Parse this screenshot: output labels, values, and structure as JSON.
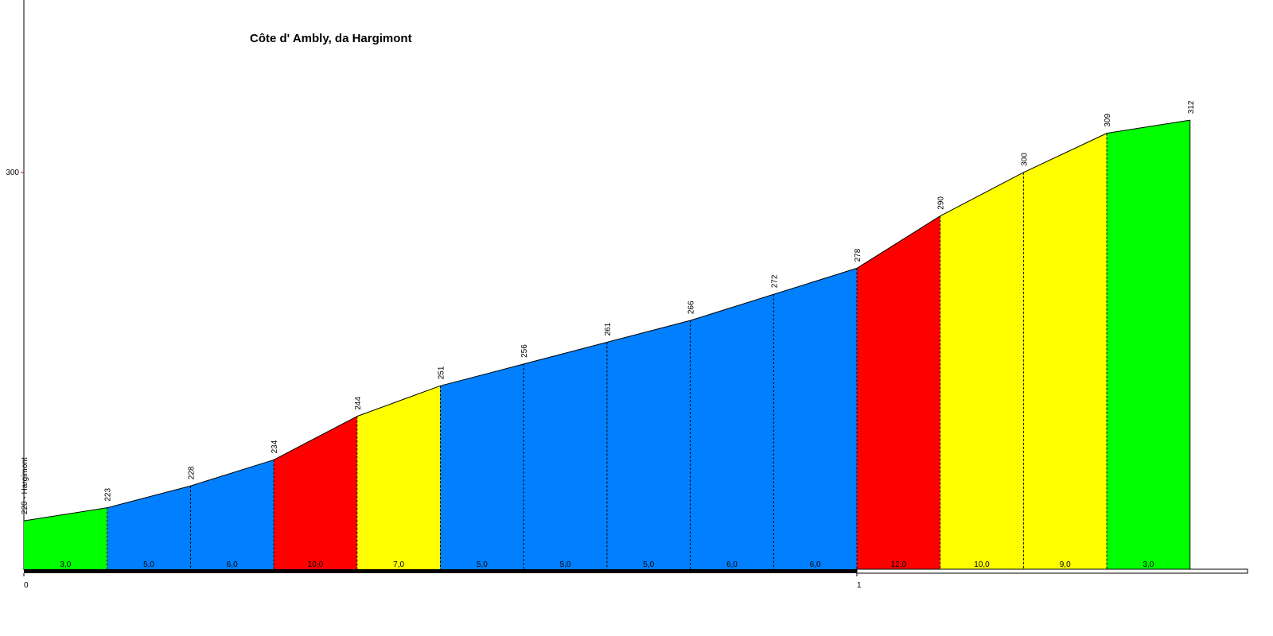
{
  "chart_data": {
    "type": "profile",
    "title": "Côte d' Ambly, da Hargimont",
    "x": [
      0,
      0.1,
      0.2,
      0.3,
      0.4,
      0.5,
      0.6,
      0.7,
      0.8,
      0.9,
      1.0,
      1.1,
      1.2,
      1.3,
      1.4
    ],
    "values": [
      220,
      223,
      228,
      234,
      244,
      251,
      256,
      261,
      266,
      272,
      278,
      290,
      300,
      309,
      312
    ],
    "value_labels": [
      "220 - Hargimont",
      "223",
      "228",
      "234",
      "244",
      "251",
      "256",
      "261",
      "266",
      "272",
      "278",
      "290",
      "300",
      "309",
      "312"
    ],
    "segments": {
      "values": [
        3,
        5,
        6,
        10,
        7,
        5,
        5,
        5,
        6,
        6,
        12,
        10,
        9,
        3
      ],
      "value_labels": [
        "3,0",
        "5,0",
        "6,0",
        "10,0",
        "7,0",
        "5,0",
        "5,0",
        "5,0",
        "6,0",
        "6,0",
        "12,0",
        "10,0",
        "9,0",
        "3,0"
      ],
      "colors": [
        "#00ff00",
        "#0080ff",
        "#0080ff",
        "#ff0000",
        "#ffff00",
        "#0080ff",
        "#0080ff",
        "#0080ff",
        "#0080ff",
        "#0080ff",
        "#ff0000",
        "#ffff00",
        "#ffff00",
        "#00ff00"
      ]
    },
    "xlim": [
      0,
      1.469
    ],
    "xticks": [
      0,
      1
    ],
    "ylim": [
      208.7,
      339.6
    ],
    "yticks": [
      300
    ]
  }
}
